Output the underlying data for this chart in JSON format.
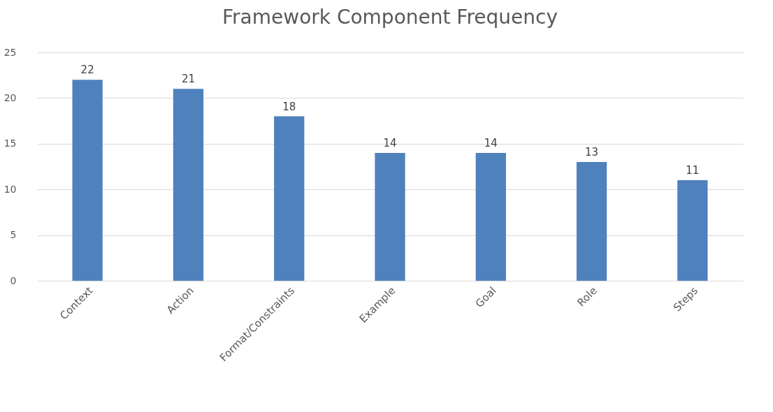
{
  "chart_data": {
    "type": "bar",
    "title": "Framework Component Frequency",
    "categories": [
      "Context",
      "Action",
      "Format/Constraints",
      "Example",
      "Goal",
      "Role",
      "Steps"
    ],
    "values": [
      22,
      21,
      18,
      14,
      14,
      13,
      11
    ],
    "color": "#4f81bd",
    "ylim": [
      0,
      25
    ],
    "yticks": [
      0,
      5,
      10,
      15,
      20,
      25
    ],
    "grid": "y",
    "data_labels": true
  }
}
